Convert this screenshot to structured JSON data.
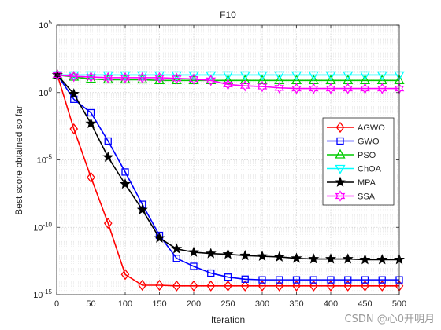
{
  "chart_data": {
    "type": "line",
    "title": "F10",
    "xlabel": "Iteration",
    "ylabel": "Best score obtained so far",
    "x_scale": "linear",
    "y_scale": "log",
    "xlim": [
      0,
      500
    ],
    "ylim_exp": [
      -15,
      5
    ],
    "xticks": [
      0,
      50,
      100,
      150,
      200,
      250,
      300,
      350,
      400,
      450,
      500
    ],
    "yticks_exp": [
      -15,
      -10,
      -5,
      0,
      5
    ],
    "ytick_base": "10",
    "grid": true,
    "legend_position": "right",
    "x": [
      1,
      25,
      50,
      75,
      100,
      125,
      150,
      175,
      200,
      225,
      250,
      275,
      300,
      325,
      350,
      375,
      400,
      425,
      450,
      475,
      500
    ],
    "series": [
      {
        "name": "AGWO",
        "color": "#ff0000",
        "marker": "diamond",
        "log10_values": [
          1.3,
          -2.7,
          -6.3,
          -9.7,
          -13.5,
          -14.3,
          -14.3,
          -14.35,
          -14.35,
          -14.35,
          -14.35,
          -14.35,
          -14.35,
          -14.35,
          -14.35,
          -14.35,
          -14.35,
          -14.35,
          -14.35,
          -14.35,
          -14.35
        ]
      },
      {
        "name": "GWO",
        "color": "#0000ff",
        "marker": "square",
        "log10_values": [
          1.3,
          -0.5,
          -1.5,
          -3.6,
          -5.9,
          -8.3,
          -10.6,
          -12.3,
          -12.9,
          -13.4,
          -13.7,
          -13.85,
          -13.9,
          -13.9,
          -13.9,
          -13.9,
          -13.9,
          -13.9,
          -13.9,
          -13.9,
          -13.9
        ]
      },
      {
        "name": "PSO",
        "color": "#00cc00",
        "marker": "triangle-up",
        "log10_values": [
          1.3,
          1.15,
          1.0,
          0.95,
          0.95,
          0.95,
          0.9,
          0.9,
          0.9,
          0.9,
          0.9,
          0.9,
          0.9,
          0.9,
          0.9,
          0.9,
          0.9,
          0.9,
          0.9,
          0.9,
          0.9
        ]
      },
      {
        "name": "ChOA",
        "color": "#00ffff",
        "marker": "triangle-down",
        "log10_values": [
          1.3,
          1.3,
          1.3,
          1.3,
          1.3,
          1.3,
          1.3,
          1.3,
          1.3,
          1.3,
          1.3,
          1.3,
          1.3,
          1.3,
          1.3,
          1.3,
          1.3,
          1.3,
          1.3,
          1.3,
          1.3
        ]
      },
      {
        "name": "MPA",
        "color": "#000000",
        "marker": "star",
        "log10_values": [
          1.3,
          -0.1,
          -2.3,
          -4.8,
          -6.8,
          -8.7,
          -10.8,
          -11.6,
          -11.85,
          -11.95,
          -12.0,
          -12.1,
          -12.15,
          -12.2,
          -12.3,
          -12.35,
          -12.35,
          -12.35,
          -12.4,
          -12.4,
          -12.4
        ]
      },
      {
        "name": "SSA",
        "color": "#ff00ff",
        "marker": "hexagram",
        "log10_values": [
          1.3,
          1.2,
          1.15,
          1.1,
          1.1,
          1.1,
          1.1,
          1.05,
          1.0,
          0.9,
          0.6,
          0.5,
          0.45,
          0.35,
          0.3,
          0.3,
          0.3,
          0.3,
          0.3,
          0.3,
          0.3
        ]
      }
    ]
  },
  "watermark": "CSDN @心0开明月"
}
